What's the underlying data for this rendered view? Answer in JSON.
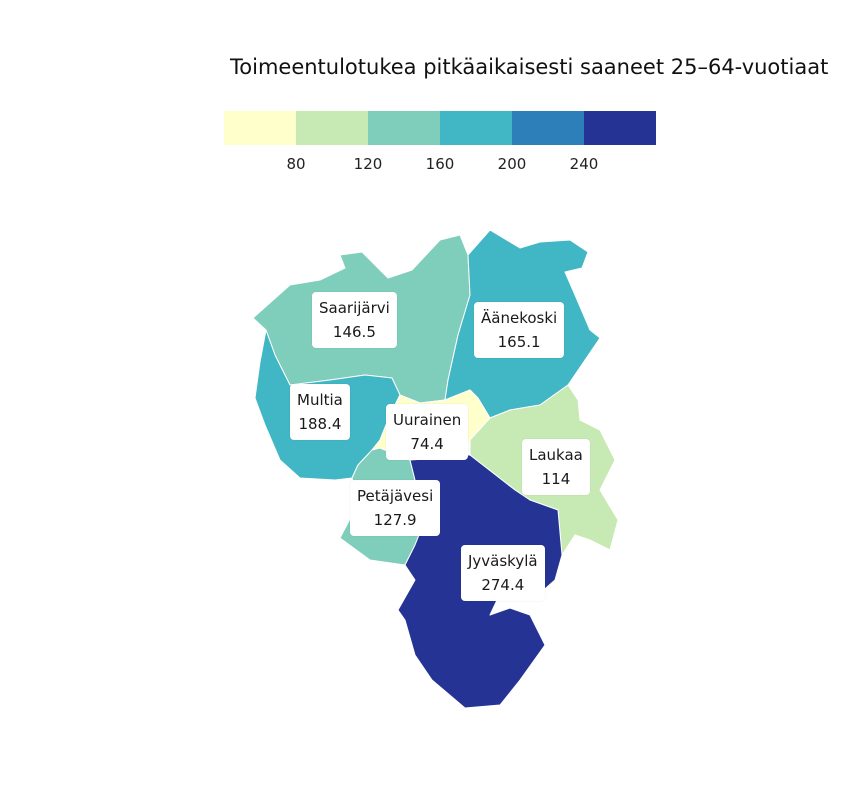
{
  "title": "Toimeentulotukea pitkäaikaisesti saaneet 25–64-vuotiaat",
  "legend": {
    "colors": [
      "#ffffcc",
      "#c7e9b4",
      "#7fcdbb",
      "#41b6c4",
      "#2c7fb8",
      "#253494"
    ],
    "ticks": [
      "80",
      "120",
      "160",
      "200",
      "240"
    ]
  },
  "regions": [
    {
      "name": "Saarijärvi",
      "value": "146.5",
      "color": "#7fcdbb"
    },
    {
      "name": "Äänekoski",
      "value": "165.1",
      "color": "#41b6c4"
    },
    {
      "name": "Multia",
      "value": "188.4",
      "color": "#41b6c4"
    },
    {
      "name": "Uurainen",
      "value": "74.4",
      "color": "#ffffcc"
    },
    {
      "name": "Laukaa",
      "value": "114",
      "color": "#c7e9b4"
    },
    {
      "name": "Petäjävesi",
      "value": "127.9",
      "color": "#7fcdbb"
    },
    {
      "name": "Jyväskylä",
      "value": "274.4",
      "color": "#253494"
    }
  ]
}
